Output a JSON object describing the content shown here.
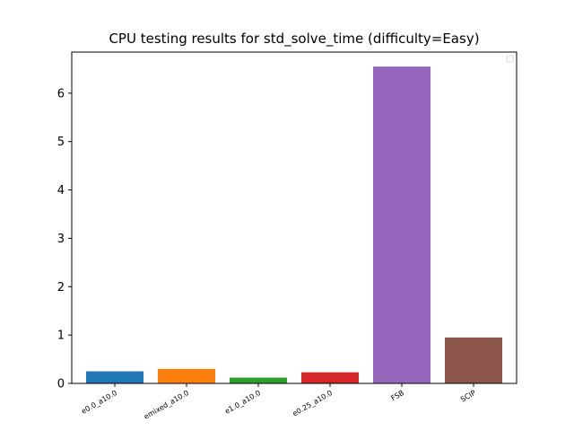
{
  "chart_data": {
    "type": "bar",
    "title": "CPU testing results for std_solve_time (difficulty=Easy)",
    "xlabel": "",
    "ylabel": "",
    "categories": [
      "e0.0_a10.0",
      "emixed_a10.0",
      "e1.0_a10.0",
      "e0.25_a10.0",
      "FSB",
      "SCIP"
    ],
    "values": [
      0.25,
      0.3,
      0.12,
      0.23,
      6.55,
      0.95
    ],
    "colors": [
      "#1f77b4",
      "#ff7f0e",
      "#2ca02c",
      "#d62728",
      "#9467bd",
      "#8c564b"
    ],
    "ylim": [
      0,
      6.85
    ],
    "yticks": [
      0,
      1,
      2,
      3,
      4,
      5,
      6
    ],
    "grid": false,
    "legend": "top-right (empty)"
  }
}
